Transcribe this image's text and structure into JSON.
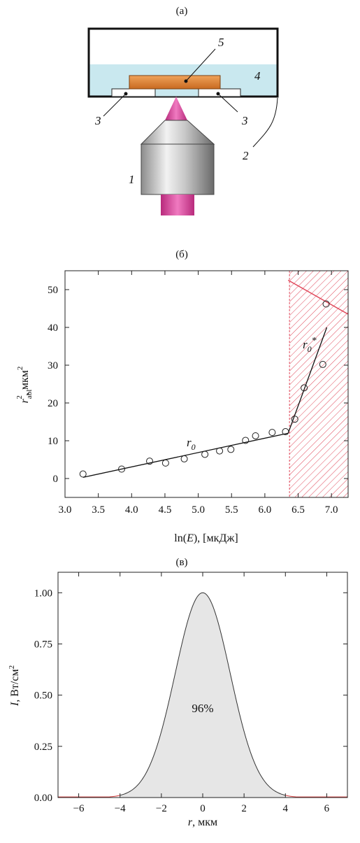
{
  "panel_a": {
    "label": "(а)",
    "callouts": {
      "objective": "1",
      "window": "2",
      "spacer_left": "3",
      "spacer_right": "3",
      "liquid": "4",
      "sample": "5"
    },
    "colors": {
      "liquid": "#c9e8ef",
      "sample": "#e08a3c",
      "laser": "#d6409a",
      "frame": "#111111"
    }
  },
  "chart_data": [
    {
      "type": "scatter",
      "panel_label": "(б)",
      "xlabel": "ln(E), [мкДж]",
      "ylabel": "r²abl , мкм²",
      "xlim": [
        3.0,
        7.25
      ],
      "ylim": [
        -5,
        55
      ],
      "xticks": [
        "3.0",
        "3.5",
        "4.0",
        "4.5",
        "5.0",
        "5.5",
        "6.0",
        "6.5",
        "7.0"
      ],
      "yticks": [
        "0",
        "10",
        "20",
        "30",
        "40",
        "50"
      ],
      "points": [
        [
          3.27,
          1.2
        ],
        [
          3.85,
          2.5
        ],
        [
          4.27,
          4.6
        ],
        [
          4.51,
          4.1
        ],
        [
          4.79,
          5.2
        ],
        [
          5.1,
          6.4
        ],
        [
          5.32,
          7.3
        ],
        [
          5.49,
          7.7
        ],
        [
          5.71,
          10.1
        ],
        [
          5.86,
          11.3
        ],
        [
          6.11,
          12.2
        ],
        [
          6.31,
          12.4
        ],
        [
          6.45,
          15.7
        ],
        [
          6.59,
          24.0
        ],
        [
          6.87,
          30.2
        ],
        [
          6.92,
          46.2
        ]
      ],
      "fit_lines": [
        {
          "name": "r0",
          "x": [
            3.27,
            6.35
          ],
          "y": [
            0.3,
            12.0
          ]
        },
        {
          "name": "r0*",
          "x": [
            6.35,
            6.93
          ],
          "y": [
            12.0,
            40.0
          ]
        }
      ],
      "annotations": {
        "r0": "r0",
        "r0_star": "r0*"
      },
      "shaded_region": {
        "x": [
          6.37,
          7.25
        ],
        "pattern": "hatch",
        "color": "#e0485a"
      },
      "hatch_line": {
        "x": [
          6.35,
          7.25
        ],
        "y": [
          52.5,
          43.5
        ]
      },
      "grid": false
    },
    {
      "type": "area",
      "panel_label": "(в)",
      "xlabel": "r, мкм",
      "ylabel": "I, Вт/см²",
      "xlim": [
        -7,
        7
      ],
      "ylim": [
        0,
        1.1
      ],
      "xticks": [
        "−6",
        "−4",
        "−2",
        "0",
        "2",
        "4",
        "6"
      ],
      "yticks": [
        "0.00",
        "0.25",
        "0.50",
        "0.75",
        "1.00"
      ],
      "curve": "gaussian",
      "peak": 1.0,
      "sigma": 1.33,
      "shaded_interval": [
        -4,
        4
      ],
      "shaded_label": "96%",
      "colors": {
        "fill": "#e6e6e6",
        "curve": "#333333",
        "tails": "#d43c3c"
      },
      "grid": false
    }
  ]
}
